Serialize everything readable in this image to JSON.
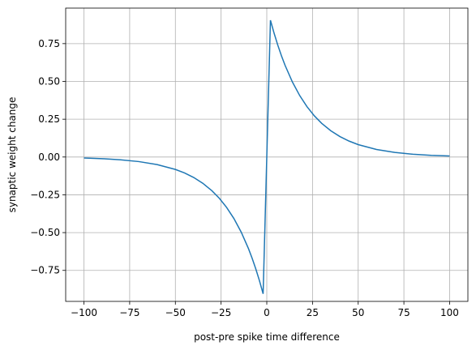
{
  "chart_data": {
    "type": "line",
    "xlabel": "post-pre spike time difference",
    "ylabel": "synaptic weight change",
    "x": [
      -100,
      -90,
      -80,
      -70,
      -60,
      -50,
      -45,
      -40,
      -35,
      -30,
      -26,
      -22,
      -18,
      -14,
      -10,
      -8,
      -6,
      -4,
      -2,
      0,
      2,
      4,
      6,
      8,
      10,
      14,
      18,
      22,
      26,
      30,
      35,
      40,
      45,
      50,
      60,
      70,
      80,
      90,
      100
    ],
    "series": [
      {
        "color": "#1f77b4",
        "values": [
          -0.0067,
          -0.0111,
          -0.0183,
          -0.0302,
          -0.0498,
          -0.0821,
          -0.1054,
          -0.1353,
          -0.1738,
          -0.2231,
          -0.2725,
          -0.3329,
          -0.4066,
          -0.4966,
          -0.6065,
          -0.6703,
          -0.7408,
          -0.8187,
          -0.9048,
          0,
          0.9048,
          0.8187,
          0.7408,
          0.6703,
          0.6065,
          0.4966,
          0.4066,
          0.3329,
          0.2725,
          0.2231,
          0.1738,
          0.1353,
          0.1054,
          0.0821,
          0.0498,
          0.0302,
          0.0183,
          0.0111,
          0.0067
        ]
      }
    ],
    "xlim": [
      -110,
      110
    ],
    "ylim": [
      -0.955,
      0.985
    ],
    "xticks": [
      {
        "value": -100,
        "label": "−100"
      },
      {
        "value": -75,
        "label": "−75"
      },
      {
        "value": -50,
        "label": "−50"
      },
      {
        "value": -25,
        "label": "−25"
      },
      0,
      25,
      50,
      75,
      100
    ],
    "yticks": [
      {
        "value": -0.75,
        "label": "−0.75"
      },
      {
        "value": -0.5,
        "label": "−0.50"
      },
      {
        "value": -0.25,
        "label": "−0.25"
      },
      {
        "value": 0,
        "label": "0.00"
      },
      0.25,
      {
        "value": 0.5,
        "label": "0.50"
      },
      0.75
    ],
    "grid": true
  }
}
